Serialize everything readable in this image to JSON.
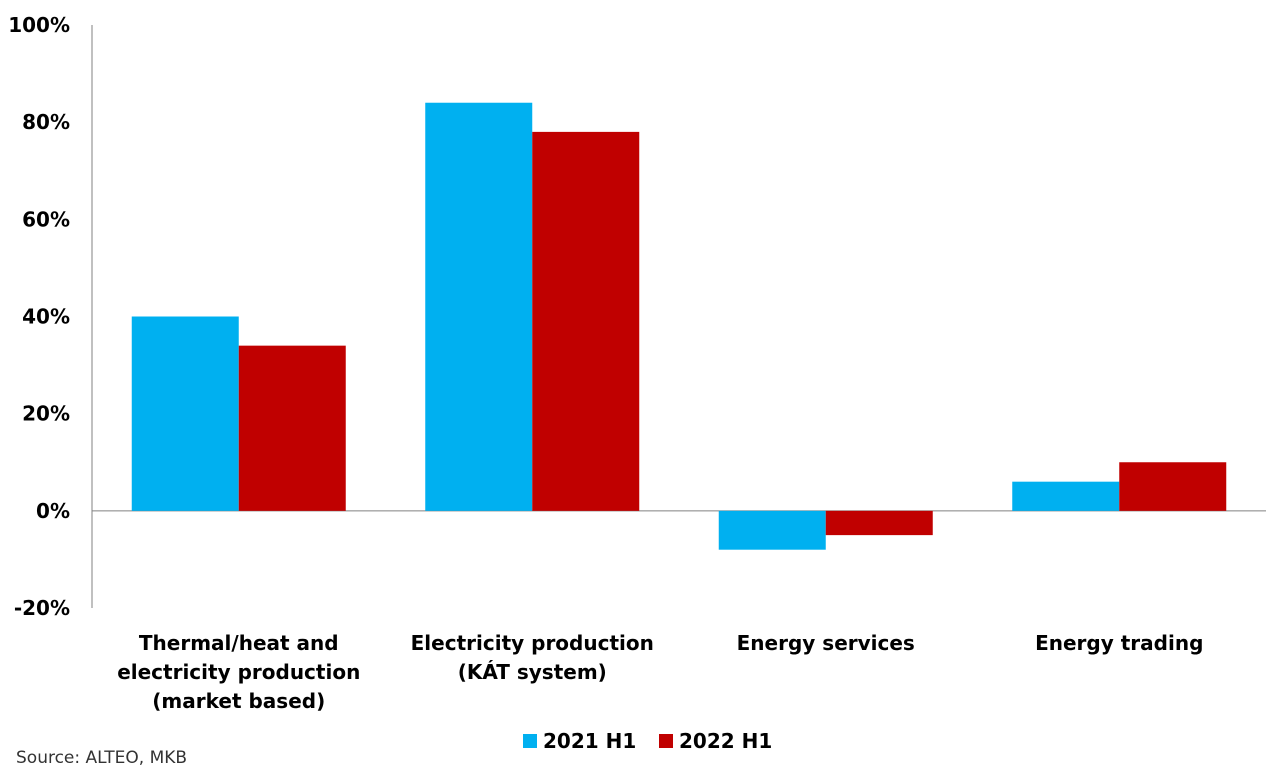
{
  "chart_data": {
    "type": "bar",
    "categories": [
      [
        "Thermal/heat and",
        "electricity production",
        "(market based)"
      ],
      [
        "Electricity production",
        "(KÁT system)"
      ],
      [
        "Energy services"
      ],
      [
        "Energy trading"
      ]
    ],
    "series": [
      {
        "name": "2021 H1",
        "color": "#00b0f0",
        "values": [
          40,
          84,
          -8,
          6
        ]
      },
      {
        "name": "2022 H1",
        "color": "#c00000",
        "values": [
          34,
          78,
          -5,
          10
        ]
      }
    ],
    "y_ticks": [
      "100%",
      "80%",
      "60%",
      "40%",
      "20%",
      "0%",
      "-20%"
    ],
    "ylim": [
      -20,
      100
    ],
    "legend_position": "bottom-center",
    "grid": false
  },
  "source": "Source: ALTEO, MKB"
}
